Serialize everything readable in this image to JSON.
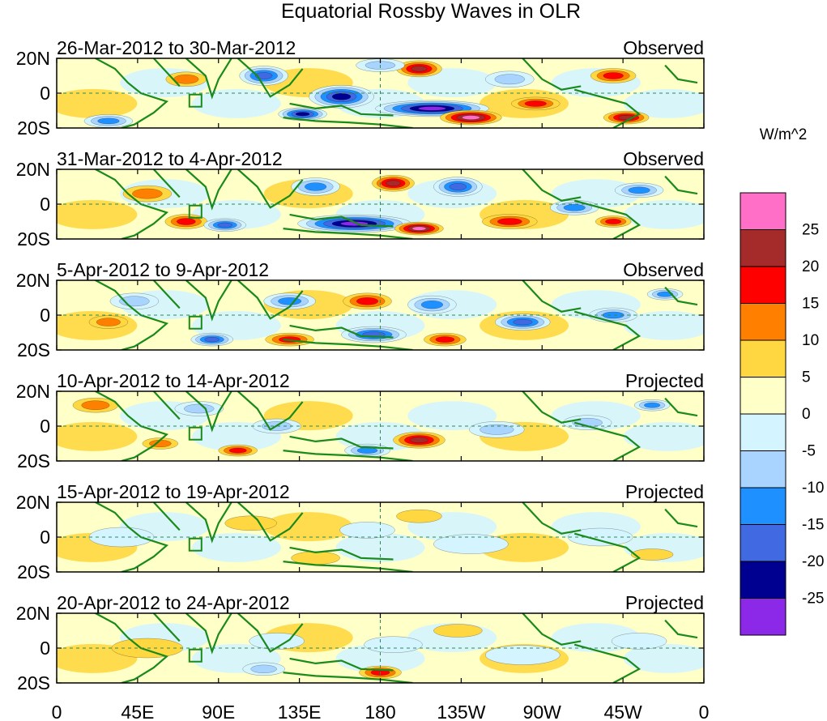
{
  "figure": {
    "title": "Equatorial Rossby Waves in OLR",
    "units_label": "W/m^2"
  },
  "panels": [
    {
      "dates": "26-Mar-2012 to 30-Mar-2012",
      "status": "Observed"
    },
    {
      "dates": "31-Mar-2012 to 4-Apr-2012",
      "status": "Observed"
    },
    {
      "dates": "5-Apr-2012 to 9-Apr-2012",
      "status": "Observed"
    },
    {
      "dates": "10-Apr-2012 to 14-Apr-2012",
      "status": "Projected"
    },
    {
      "dates": "15-Apr-2012 to 19-Apr-2012",
      "status": "Projected"
    },
    {
      "dates": "20-Apr-2012 to 24-Apr-2012",
      "status": "Projected"
    }
  ],
  "axes": {
    "lat_labels": [
      "20N",
      "0",
      "20S"
    ],
    "lon_labels": [
      "0",
      "45E",
      "90E",
      "135E",
      "180",
      "135W",
      "90W",
      "45W",
      "0"
    ]
  },
  "colorbar": {
    "labels": [
      "25",
      "20",
      "15",
      "10",
      "5",
      "0",
      "-5",
      "-10",
      "-15",
      "-20",
      "-25"
    ],
    "colors": [
      "#ff6ec7",
      "#a52a2a",
      "#ff0000",
      "#ff7f00",
      "#ffd740",
      "#ffffc8",
      "#d4f5ff",
      "#a8d4ff",
      "#1e90ff",
      "#4169e1",
      "#000090",
      "#8c28e8"
    ]
  },
  "colors": {
    "coast": "#1a8a1a",
    "grid": "#2e8b57"
  }
}
